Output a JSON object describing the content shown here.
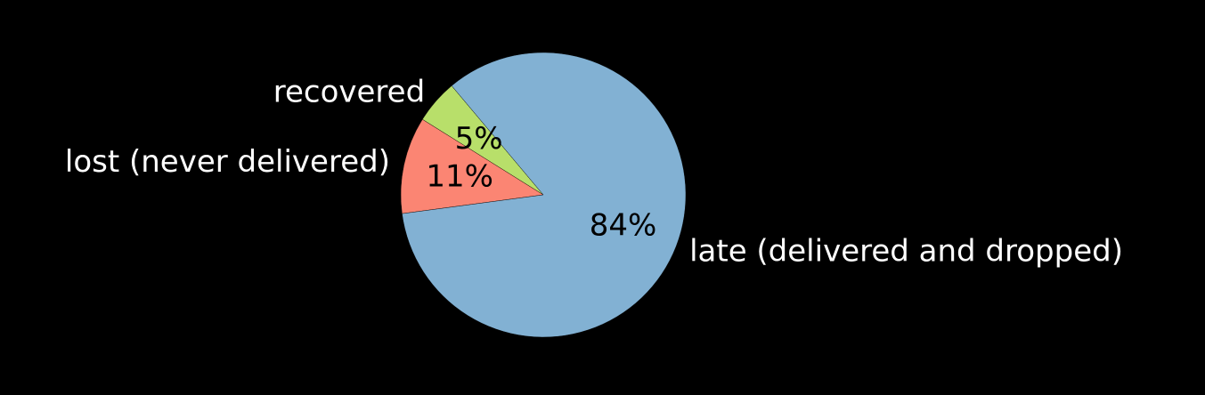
{
  "chart_data": {
    "type": "pie",
    "title": "",
    "background": "#000000",
    "label_color": "#ffffff",
    "pct_color": "#000000",
    "start_angle_deg": 130.0,
    "direction": "counterclockwise",
    "slices": [
      {
        "label": "recovered",
        "value": 5,
        "pct_label": "5%",
        "color": "#b8df6a"
      },
      {
        "label": "lost (never delivered)",
        "value": 11,
        "pct_label": "11%",
        "color": "#fb8573"
      },
      {
        "label": "late (delivered and dropped)",
        "value": 84,
        "pct_label": "84%",
        "color": "#82b1d3"
      }
    ]
  }
}
